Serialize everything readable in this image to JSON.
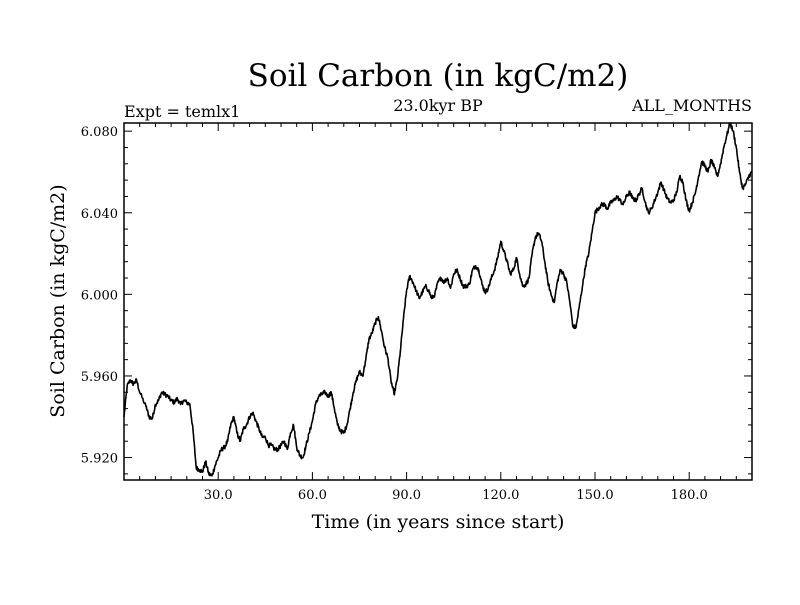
{
  "header": {
    "title": "Soil Carbon (in kgC/m2)",
    "left": "Expt = temlx1",
    "center": "23.0kyr BP",
    "right": "ALL_MONTHS"
  },
  "chart_data": {
    "type": "line",
    "title": "Soil Carbon (in kgC/m2)",
    "xlabel": "Time (in years since start)",
    "ylabel": "Soil Carbon (in kgC/m2)",
    "xlim": [
      0,
      200
    ],
    "ylim": [
      5.909,
      6.084
    ],
    "x_ticks": [
      30,
      60,
      90,
      120,
      150,
      180
    ],
    "x_tick_labels": [
      "30.0",
      "60.0",
      "90.0",
      "120.0",
      "150.0",
      "180.0"
    ],
    "y_ticks": [
      5.92,
      5.96,
      6.0,
      6.04,
      6.08
    ],
    "y_tick_labels": [
      "5.920",
      "5.960",
      "6.000",
      "6.040",
      "6.080"
    ],
    "grid": false,
    "series": [
      {
        "name": "Soil Carbon",
        "x": [
          0,
          1,
          2,
          3,
          4,
          5,
          7,
          8,
          9,
          10,
          11,
          12,
          13,
          14,
          15,
          16,
          17,
          18,
          19,
          20,
          21,
          22,
          23,
          24,
          25,
          26,
          27,
          28,
          29,
          30,
          31,
          32,
          33,
          34,
          35,
          36,
          37,
          38,
          39,
          40,
          41,
          42,
          43,
          44,
          45,
          46,
          47,
          48,
          49,
          50,
          51,
          52,
          53,
          54,
          55,
          56,
          57,
          58,
          59,
          60,
          61,
          62,
          63,
          64,
          65,
          66,
          67,
          68,
          69,
          70,
          71,
          72,
          73,
          74,
          75,
          76,
          77,
          78,
          79,
          80,
          81,
          82,
          83,
          84,
          85,
          86,
          87,
          88,
          89,
          90,
          91,
          92,
          93,
          94,
          95,
          96,
          97,
          98,
          99,
          100,
          101,
          102,
          103,
          104,
          105,
          106,
          107,
          108,
          109,
          110,
          111,
          112,
          113,
          114,
          115,
          116,
          117,
          118,
          119,
          120,
          121,
          122,
          123,
          124,
          125,
          126,
          127,
          128,
          129,
          130,
          131,
          132,
          133,
          134,
          135,
          136,
          137,
          138,
          139,
          140,
          141,
          142,
          143,
          144,
          145,
          146,
          147,
          148,
          149,
          150,
          151,
          152,
          153,
          154,
          155,
          156,
          157,
          158,
          159,
          160,
          161,
          162,
          163,
          164,
          165,
          166,
          167,
          168,
          169,
          170,
          171,
          172,
          173,
          174,
          175,
          176,
          177,
          178,
          179,
          180,
          181,
          182,
          183,
          184,
          185,
          186,
          187,
          188,
          189,
          190,
          191,
          192,
          193,
          194,
          195,
          196,
          197,
          198,
          199,
          200
        ],
        "values": [
          5.94,
          5.955,
          5.958,
          5.956,
          5.958,
          5.952,
          5.945,
          5.94,
          5.939,
          5.946,
          5.948,
          5.952,
          5.951,
          5.95,
          5.948,
          5.947,
          5.949,
          5.946,
          5.948,
          5.947,
          5.946,
          5.933,
          5.915,
          5.914,
          5.913,
          5.918,
          5.912,
          5.911,
          5.916,
          5.92,
          5.924,
          5.925,
          5.928,
          5.936,
          5.94,
          5.932,
          5.928,
          5.934,
          5.936,
          5.94,
          5.942,
          5.938,
          5.934,
          5.93,
          5.93,
          5.926,
          5.926,
          5.924,
          5.924,
          5.926,
          5.928,
          5.924,
          5.932,
          5.936,
          5.925,
          5.921,
          5.92,
          5.926,
          5.932,
          5.938,
          5.946,
          5.95,
          5.951,
          5.952,
          5.95,
          5.952,
          5.944,
          5.936,
          5.933,
          5.932,
          5.936,
          5.944,
          5.952,
          5.958,
          5.962,
          5.96,
          5.968,
          5.978,
          5.981,
          5.986,
          5.989,
          5.982,
          5.974,
          5.969,
          5.958,
          5.951,
          5.958,
          5.972,
          5.988,
          6.002,
          6.009,
          6.006,
          6.002,
          5.998,
          6.001,
          6.004,
          6.002,
          5.998,
          6.0,
          6.006,
          6.008,
          6.006,
          6.008,
          6.003,
          6.01,
          6.012,
          6.008,
          6.004,
          6.004,
          6.005,
          6.012,
          6.014,
          6.012,
          6.005,
          6.001,
          6.003,
          6.008,
          6.012,
          6.018,
          6.026,
          6.021,
          6.016,
          6.01,
          6.012,
          6.018,
          6.01,
          6.004,
          6.005,
          6.008,
          6.02,
          6.028,
          6.03,
          6.026,
          6.016,
          6.006,
          6.0,
          5.996,
          6.006,
          6.012,
          6.01,
          6.006,
          5.996,
          5.984,
          5.984,
          5.994,
          6.004,
          6.014,
          6.02,
          6.03,
          6.04,
          6.042,
          6.044,
          6.044,
          6.042,
          6.045,
          6.046,
          6.048,
          6.046,
          6.044,
          6.048,
          6.05,
          6.047,
          6.046,
          6.049,
          6.052,
          6.045,
          6.04,
          6.042,
          6.046,
          6.05,
          6.055,
          6.051,
          6.047,
          6.045,
          6.046,
          6.05,
          6.058,
          6.055,
          6.046,
          6.041,
          6.045,
          6.05,
          6.058,
          6.065,
          6.063,
          6.06,
          6.066,
          6.062,
          6.058,
          6.064,
          6.072,
          6.078,
          6.084,
          6.08,
          6.072,
          6.06,
          6.052,
          6.054,
          6.058,
          6.06
        ]
      }
    ]
  }
}
